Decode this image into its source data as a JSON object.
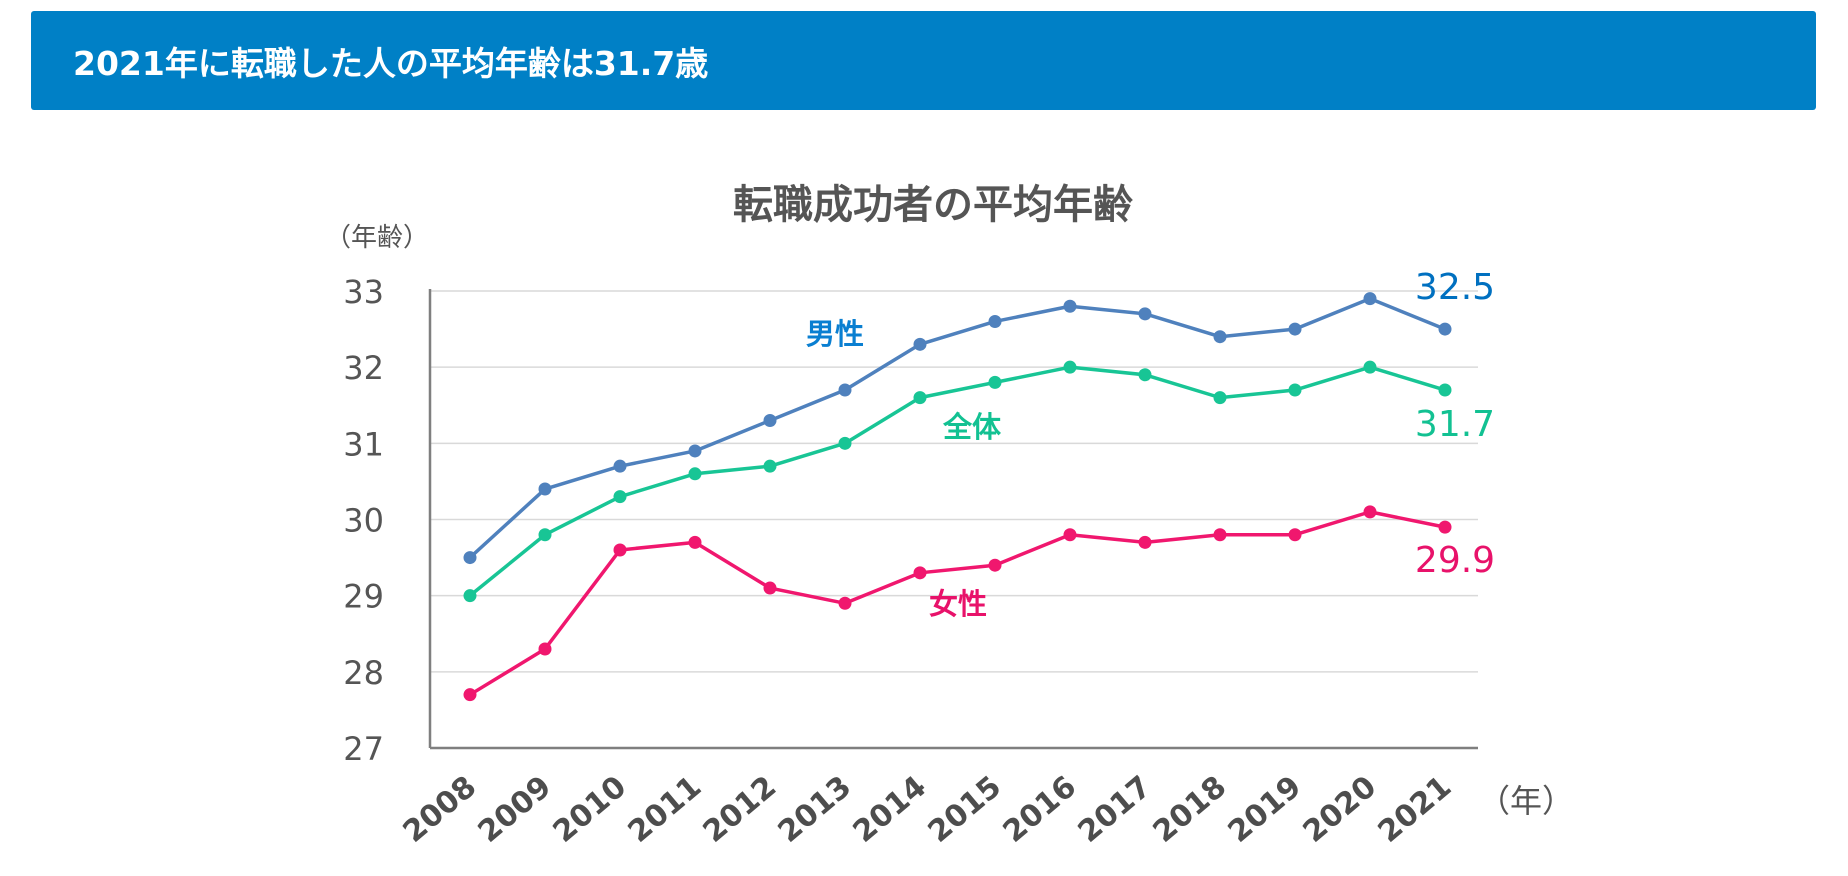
{
  "header": {
    "title": "2021年に転職した人の平均年齢は31.7歳",
    "background_color": "#0080c6"
  },
  "chart_data": {
    "type": "line",
    "title": "転職成功者の平均年齢",
    "y_unit_label": "（年齢）",
    "x_unit_label": "（年）",
    "categories": [
      "2008",
      "2009",
      "2010",
      "2011",
      "2012",
      "2013",
      "2014",
      "2015",
      "2016",
      "2017",
      "2018",
      "2019",
      "2020",
      "2021"
    ],
    "ylim": [
      27,
      33
    ],
    "yticks": [
      27,
      28,
      29,
      30,
      31,
      32,
      33
    ],
    "grid": true,
    "series": [
      {
        "name": "男性",
        "color": "#4f81bd",
        "label_color": "#0a7fd1",
        "values": [
          29.5,
          30.4,
          30.7,
          30.9,
          31.3,
          31.7,
          32.3,
          32.6,
          32.8,
          32.7,
          32.4,
          32.5,
          32.9,
          32.5
        ],
        "end_label": "32.5",
        "end_label_color": "#0070c0"
      },
      {
        "name": "全体",
        "color": "#18c595",
        "label_color": "#12c192",
        "values": [
          29.0,
          29.8,
          30.3,
          30.6,
          30.7,
          31.0,
          31.6,
          31.8,
          32.0,
          31.9,
          31.6,
          31.7,
          32.0,
          31.7
        ],
        "end_label": "31.7",
        "end_label_color": "#12c192"
      },
      {
        "name": "女性",
        "color": "#f0176e",
        "label_color": "#e8126a",
        "values": [
          27.7,
          28.3,
          29.6,
          29.7,
          29.1,
          28.9,
          29.3,
          29.4,
          29.8,
          29.7,
          29.8,
          29.8,
          30.1,
          29.9
        ],
        "end_label": "29.9",
        "end_label_color": "#e8126a"
      }
    ]
  }
}
